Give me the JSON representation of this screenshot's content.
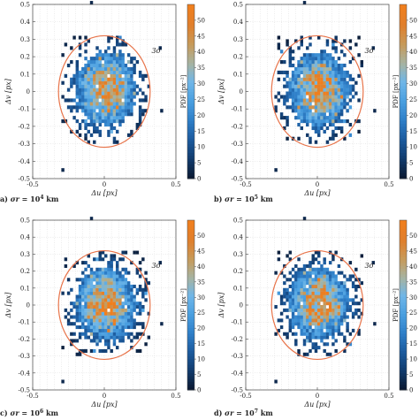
{
  "figure": {
    "panels": [
      {
        "id": "a",
        "caption_prefix": "a)",
        "caption_symbol": "σr",
        "caption_eq": "=",
        "caption_base": "10",
        "caption_exp": "4",
        "caption_unit": "km",
        "seed": 11
      },
      {
        "id": "b",
        "caption_prefix": "b)",
        "caption_symbol": "σr",
        "caption_eq": "=",
        "caption_base": "10",
        "caption_exp": "5",
        "caption_unit": "km",
        "seed": 23
      },
      {
        "id": "c",
        "caption_prefix": "c)",
        "caption_symbol": "σr",
        "caption_eq": "=",
        "caption_base": "10",
        "caption_exp": "6",
        "caption_unit": "km",
        "seed": 37
      },
      {
        "id": "d",
        "caption_prefix": "d)",
        "caption_symbol": "σr",
        "caption_eq": "=",
        "caption_base": "10",
        "caption_exp": "7",
        "caption_unit": "km",
        "seed": 53
      }
    ]
  },
  "chart_data": [
    {
      "type": "heatmap",
      "panel": "a",
      "xlabel": "Δu [px]",
      "ylabel": "Δv [px]",
      "colorbar_label": "PDF [px⁻²]",
      "xlim": [
        -0.5,
        0.5
      ],
      "ylim": [
        -0.5,
        0.5
      ],
      "xticks": [
        -0.5,
        0,
        0.5
      ],
      "yticks": [
        -0.5,
        -0.4,
        -0.3,
        -0.2,
        -0.1,
        0,
        0.1,
        0.2,
        0.3,
        0.4,
        0.5
      ],
      "colorbar_range": [
        0,
        55
      ],
      "colorbar_ticks": [
        0,
        5,
        10,
        15,
        20,
        25,
        30,
        35,
        40,
        45,
        50
      ],
      "grid": true,
      "circle_label": "3σ",
      "circle_center": [
        0,
        0
      ],
      "circle_radius": 0.32,
      "bin_width": 0.02,
      "peak_pdf": 55,
      "outliers": [
        [
          -0.1,
          0.5
        ],
        [
          -0.3,
          -0.46
        ],
        [
          0.38,
          0.24
        ],
        [
          -0.28,
          0.26
        ],
        [
          0.39,
          -0.12
        ],
        [
          -0.14,
          -0.28
        ]
      ]
    },
    {
      "type": "heatmap",
      "panel": "b",
      "xlabel": "Δu [px]",
      "ylabel": "Δv [px]",
      "colorbar_label": "PDF [px⁻²]",
      "xlim": [
        -0.5,
        0.5
      ],
      "ylim": [
        -0.5,
        0.5
      ],
      "xticks": [
        -0.5,
        0,
        0.5
      ],
      "yticks": [
        -0.5,
        -0.4,
        -0.3,
        -0.2,
        -0.1,
        0,
        0.1,
        0.2,
        0.3,
        0.4,
        0.5
      ],
      "colorbar_range": [
        0,
        55
      ],
      "colorbar_ticks": [
        0,
        5,
        10,
        15,
        20,
        25,
        30,
        35,
        40,
        45,
        50
      ],
      "grid": true,
      "circle_label": "3σ",
      "circle_center": [
        0,
        0
      ],
      "circle_radius": 0.32,
      "bin_width": 0.02,
      "peak_pdf": 55,
      "outliers": [
        [
          -0.1,
          0.5
        ],
        [
          -0.3,
          -0.46
        ],
        [
          0.38,
          0.24
        ],
        [
          -0.28,
          0.26
        ],
        [
          0.39,
          -0.12
        ],
        [
          -0.14,
          -0.28
        ]
      ]
    },
    {
      "type": "heatmap",
      "panel": "c",
      "xlabel": "Δu [px]",
      "ylabel": "Δv [px]",
      "colorbar_label": "PDF [px⁻²]",
      "xlim": [
        -0.5,
        0.5
      ],
      "ylim": [
        -0.5,
        0.5
      ],
      "xticks": [
        -0.5,
        0,
        0.5
      ],
      "yticks": [
        -0.5,
        -0.4,
        -0.3,
        -0.2,
        -0.1,
        0,
        0.1,
        0.2,
        0.3,
        0.4,
        0.5
      ],
      "colorbar_range": [
        0,
        55
      ],
      "colorbar_ticks": [
        0,
        5,
        10,
        15,
        20,
        25,
        30,
        35,
        40,
        45,
        50
      ],
      "grid": true,
      "circle_label": "3σ",
      "circle_center": [
        0,
        0
      ],
      "circle_radius": 0.32,
      "bin_width": 0.02,
      "peak_pdf": 55,
      "outliers": [
        [
          -0.1,
          0.5
        ],
        [
          -0.3,
          -0.46
        ],
        [
          0.38,
          0.24
        ],
        [
          -0.28,
          0.26
        ],
        [
          0.39,
          -0.12
        ],
        [
          -0.14,
          -0.28
        ]
      ]
    },
    {
      "type": "heatmap",
      "panel": "d",
      "xlabel": "Δu [px]",
      "ylabel": "Δv [px]",
      "colorbar_label": "PDF [px⁻²]",
      "xlim": [
        -0.5,
        0.5
      ],
      "ylim": [
        -0.5,
        0.5
      ],
      "xticks": [
        -0.5,
        0,
        0.5
      ],
      "yticks": [
        -0.5,
        -0.4,
        -0.3,
        -0.2,
        -0.1,
        0,
        0.1,
        0.2,
        0.3,
        0.4,
        0.5
      ],
      "colorbar_range": [
        0,
        55
      ],
      "colorbar_ticks": [
        0,
        5,
        10,
        15,
        20,
        25,
        30,
        35,
        40,
        45,
        50
      ],
      "grid": true,
      "circle_label": "3σ",
      "circle_center": [
        0,
        0
      ],
      "circle_radius": 0.32,
      "bin_width": 0.02,
      "peak_pdf": 55,
      "outliers": [
        [
          -0.1,
          0.5
        ],
        [
          -0.3,
          -0.46
        ],
        [
          0.38,
          0.24
        ],
        [
          -0.28,
          0.26
        ],
        [
          0.39,
          -0.12
        ],
        [
          -0.14,
          -0.28
        ]
      ]
    }
  ],
  "colors": {
    "circle": "#e8744a",
    "grid": "#d9d9d9",
    "axis": "#444444",
    "colormap": [
      "#0b1a33",
      "#123c6e",
      "#1c5b9e",
      "#2f7fc8",
      "#4a9fe0",
      "#6fb6e8",
      "#a7b3a0",
      "#c79a5a",
      "#e07f2c",
      "#f07f1e"
    ]
  }
}
